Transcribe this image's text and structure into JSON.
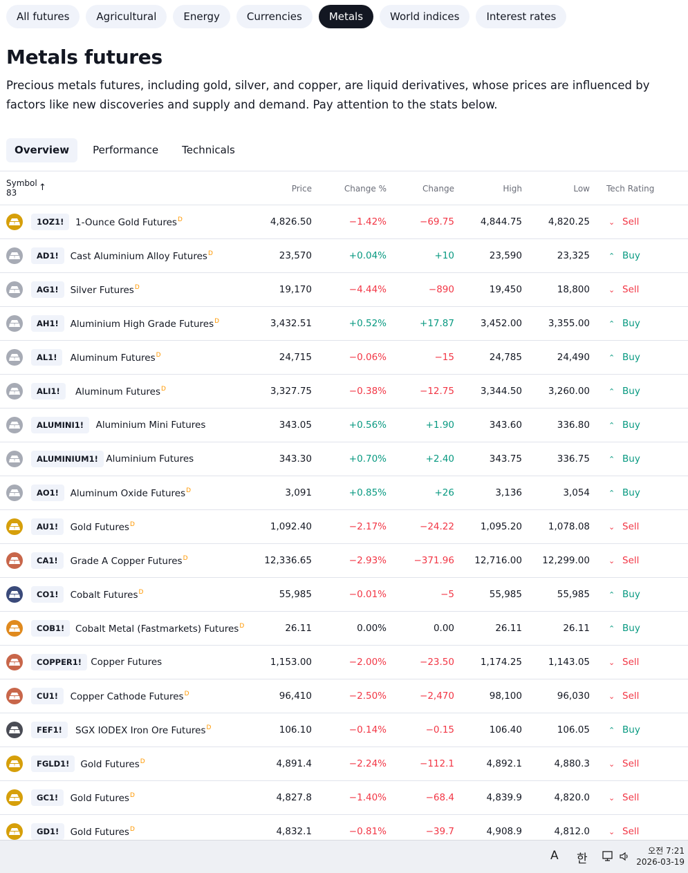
{
  "categories": [
    {
      "label": "All futures",
      "active": false
    },
    {
      "label": "Agricultural",
      "active": false
    },
    {
      "label": "Energy",
      "active": false
    },
    {
      "label": "Currencies",
      "active": false
    },
    {
      "label": "Metals",
      "active": true
    },
    {
      "label": "World indices",
      "active": false
    },
    {
      "label": "Interest rates",
      "active": false
    }
  ],
  "page": {
    "title": "Metals futures",
    "description_line1": "Precious metals futures, including gold, silver, and copper, are liquid derivatives, whose prices are influenced by",
    "description_line2": "factors like new discoveries and supply and demand. Pay attention to the stats below."
  },
  "tabs": [
    {
      "label": "Overview",
      "active": true
    },
    {
      "label": "Performance",
      "active": false
    },
    {
      "label": "Technicals",
      "active": false
    }
  ],
  "table": {
    "headers": {
      "symbol": "Symbol",
      "count": "83",
      "price": "Price",
      "change_pct": "Change %",
      "change": "Change",
      "high": "High",
      "low": "Low",
      "rating": "Tech Rating"
    },
    "delay_mark": "D",
    "rows": [
      {
        "ticker": "1OZ1!",
        "name": "1-Ounce Gold Futures",
        "delayed": true,
        "metal": "gold",
        "price": "4,826.50",
        "change_pct": "−1.42%",
        "change": "−69.75",
        "high": "4,844.75",
        "low": "4,820.25",
        "rating": "Sell",
        "dir": "neg"
      },
      {
        "ticker": "AD1!",
        "name": "Cast Aluminium Alloy Futures",
        "delayed": true,
        "metal": "aluminium",
        "price": "23,570",
        "change_pct": "+0.04%",
        "change": "+10",
        "high": "23,590",
        "low": "23,325",
        "rating": "Buy",
        "dir": "pos"
      },
      {
        "ticker": "AG1!",
        "name": "Silver Futures",
        "delayed": true,
        "metal": "silver",
        "price": "19,170",
        "change_pct": "−4.44%",
        "change": "−890",
        "high": "19,450",
        "low": "18,800",
        "rating": "Sell",
        "dir": "neg"
      },
      {
        "ticker": "AH1!",
        "name": "Aluminium High Grade Futures",
        "delayed": true,
        "metal": "aluminium",
        "price": "3,432.51",
        "change_pct": "+0.52%",
        "change": "+17.87",
        "high": "3,452.00",
        "low": "3,355.00",
        "rating": "Buy",
        "dir": "pos"
      },
      {
        "ticker": "AL1!",
        "name": "Aluminum Futures",
        "delayed": true,
        "metal": "aluminium",
        "price": "24,715",
        "change_pct": "−0.06%",
        "change": "−15",
        "high": "24,785",
        "low": "24,490",
        "rating": "Buy",
        "dir": "neg"
      },
      {
        "ticker": "ALI1!",
        "name": "Aluminum Futures",
        "delayed": true,
        "metal": "aluminium",
        "price": "3,327.75",
        "change_pct": "−0.38%",
        "change": "−12.75",
        "high": "3,344.50",
        "low": "3,260.00",
        "rating": "Buy",
        "dir": "neg"
      },
      {
        "ticker": "ALUMINI1!",
        "name": "Aluminium Mini Futures",
        "delayed": false,
        "metal": "aluminium",
        "price": "343.05",
        "change_pct": "+0.56%",
        "change": "+1.90",
        "high": "343.60",
        "low": "336.80",
        "rating": "Buy",
        "dir": "pos"
      },
      {
        "ticker": "ALUMINIUM1!",
        "name": "Aluminium Futures",
        "delayed": false,
        "metal": "aluminium",
        "price": "343.30",
        "change_pct": "+0.70%",
        "change": "+2.40",
        "high": "343.75",
        "low": "336.75",
        "rating": "Buy",
        "dir": "pos"
      },
      {
        "ticker": "AO1!",
        "name": "Aluminum Oxide Futures",
        "delayed": true,
        "metal": "aluminium",
        "price": "3,091",
        "change_pct": "+0.85%",
        "change": "+26",
        "high": "3,136",
        "low": "3,054",
        "rating": "Buy",
        "dir": "pos"
      },
      {
        "ticker": "AU1!",
        "name": "Gold Futures",
        "delayed": true,
        "metal": "gold",
        "price": "1,092.40",
        "change_pct": "−2.17%",
        "change": "−24.22",
        "high": "1,095.20",
        "low": "1,078.08",
        "rating": "Sell",
        "dir": "neg"
      },
      {
        "ticker": "CA1!",
        "name": "Grade A Copper Futures",
        "delayed": true,
        "metal": "copper",
        "price": "12,336.65",
        "change_pct": "−2.93%",
        "change": "−371.96",
        "high": "12,716.00",
        "low": "12,299.00",
        "rating": "Sell",
        "dir": "neg"
      },
      {
        "ticker": "CO1!",
        "name": "Cobalt Futures",
        "delayed": true,
        "metal": "cobalt",
        "price": "55,985",
        "change_pct": "−0.01%",
        "change": "−5",
        "high": "55,985",
        "low": "55,985",
        "rating": "Buy",
        "dir": "neg"
      },
      {
        "ticker": "COB1!",
        "name": "Cobalt Metal (Fastmarkets) Futures",
        "delayed": true,
        "metal": "cobalt-orange",
        "price": "26.11",
        "change_pct": "0.00%",
        "change": "0.00",
        "high": "26.11",
        "low": "26.11",
        "rating": "Buy",
        "dir": "neu"
      },
      {
        "ticker": "COPPER1!",
        "name": "Copper Futures",
        "delayed": false,
        "metal": "copper",
        "price": "1,153.00",
        "change_pct": "−2.00%",
        "change": "−23.50",
        "high": "1,174.25",
        "low": "1,143.05",
        "rating": "Sell",
        "dir": "neg"
      },
      {
        "ticker": "CU1!",
        "name": "Copper Cathode Futures",
        "delayed": true,
        "metal": "copper",
        "price": "96,410",
        "change_pct": "−2.50%",
        "change": "−2,470",
        "high": "98,100",
        "low": "96,030",
        "rating": "Sell",
        "dir": "neg"
      },
      {
        "ticker": "FEF1!",
        "name": "SGX IODEX Iron Ore Futures",
        "delayed": true,
        "metal": "iron",
        "price": "106.10",
        "change_pct": "−0.14%",
        "change": "−0.15",
        "high": "106.40",
        "low": "106.05",
        "rating": "Buy",
        "dir": "neg"
      },
      {
        "ticker": "FGLD1!",
        "name": "Gold Futures",
        "delayed": true,
        "metal": "gold",
        "price": "4,891.4",
        "change_pct": "−2.24%",
        "change": "−112.1",
        "high": "4,892.1",
        "low": "4,880.3",
        "rating": "Sell",
        "dir": "neg"
      },
      {
        "ticker": "GC1!",
        "name": "Gold Futures",
        "delayed": true,
        "metal": "gold",
        "price": "4,827.8",
        "change_pct": "−1.40%",
        "change": "−68.4",
        "high": "4,839.9",
        "low": "4,820.0",
        "rating": "Sell",
        "dir": "neg"
      },
      {
        "ticker": "GD1!",
        "name": "Gold Futures",
        "delayed": true,
        "metal": "gold",
        "price": "4,832.1",
        "change_pct": "−0.81%",
        "change": "−39.7",
        "high": "4,908.9",
        "low": "4,812.0",
        "rating": "Sell",
        "dir": "neg"
      }
    ]
  },
  "metal_colors": {
    "gold": "#d69f0a",
    "silver": "#a7abb5",
    "aluminium": "#a7abb5",
    "copper": "#c8664a",
    "cobalt": "#3a4a7a",
    "cobalt-orange": "#e08a1e",
    "iron": "#4a4c55"
  },
  "colors": {
    "negative": "#f23645",
    "positive": "#089981",
    "delay": "#ff9800"
  },
  "taskbar": {
    "ime_mode": "A",
    "ime_lang": "한",
    "time": "오전 7:21",
    "date": "2026-03-19"
  }
}
